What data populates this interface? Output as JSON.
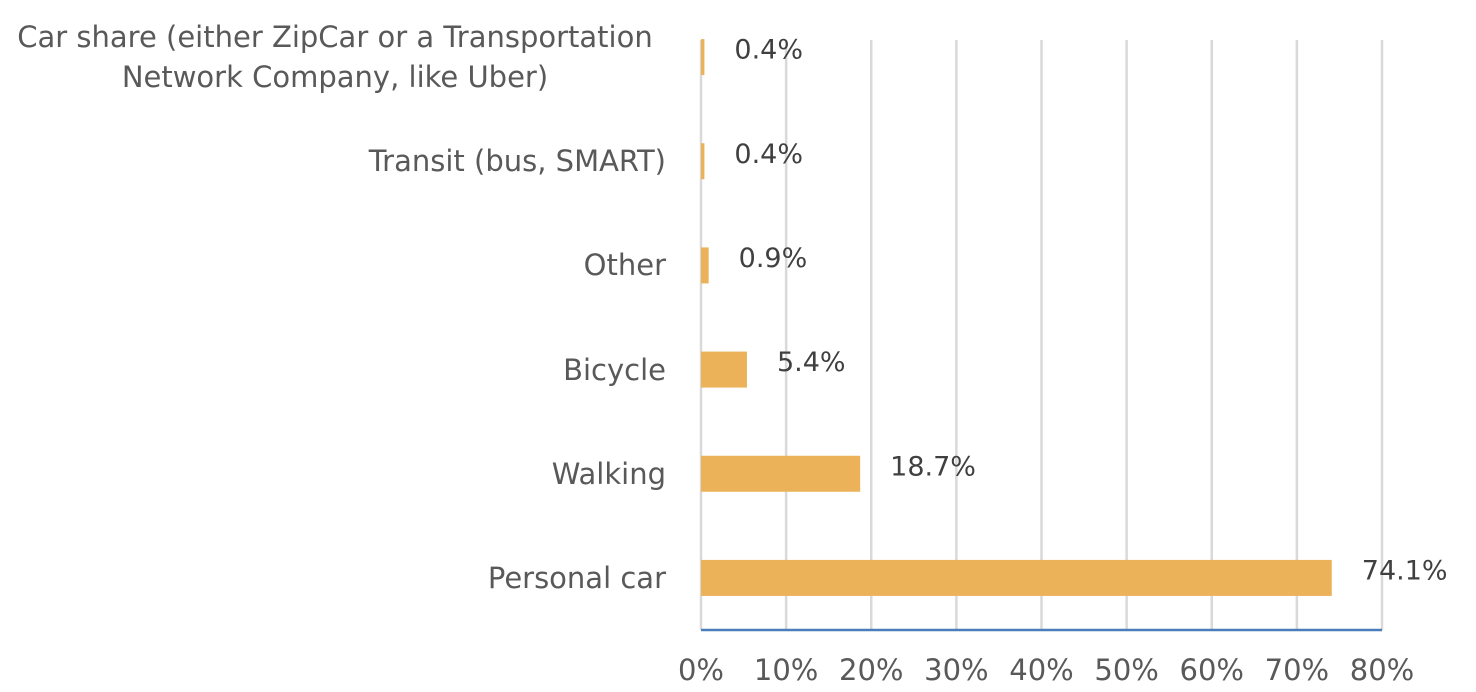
{
  "chart_data": {
    "type": "bar",
    "orientation": "horizontal",
    "categories": [
      "Car share (either ZipCar or a Transportation Network Company, like Uber)",
      "Transit (bus, SMART)",
      "Other",
      "Bicycle",
      "Walking",
      "Personal car"
    ],
    "values": [
      0.4,
      0.4,
      0.9,
      5.4,
      18.7,
      74.1
    ],
    "value_labels": [
      "0.4%",
      "0.4%",
      "0.9%",
      "5.4%",
      "18.7%",
      "74.1%"
    ],
    "color": "#ebb25a",
    "xlim": [
      0,
      80
    ],
    "xticks": [
      {
        "value": 0,
        "label": "0%"
      },
      {
        "value": 10,
        "label": "10%"
      },
      {
        "value": 20,
        "label": "20%"
      },
      {
        "value": 30,
        "label": "30%"
      },
      {
        "value": 40,
        "label": "40%"
      },
      {
        "value": 50,
        "label": "50%"
      },
      {
        "value": 60,
        "label": "60%"
      },
      {
        "value": 70,
        "label": "70%"
      },
      {
        "value": 80,
        "label": "80%"
      }
    ],
    "grid": true
  }
}
